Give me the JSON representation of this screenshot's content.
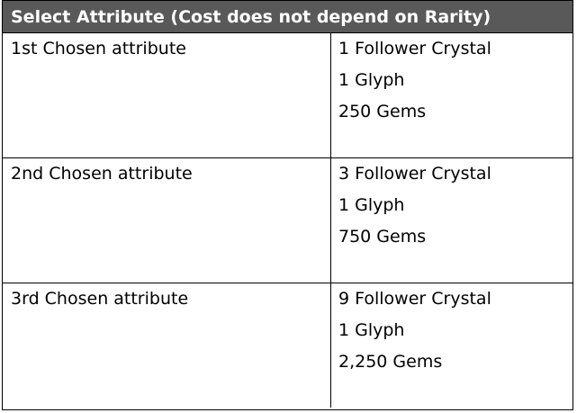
{
  "table": {
    "title": "Select Attribute (Cost does not depend on Rarity)",
    "rows": [
      {
        "label": "1st Chosen attribute",
        "costs": [
          "1 Follower Crystal",
          "1 Glyph",
          "250 Gems"
        ]
      },
      {
        "label": "2nd Chosen attribute",
        "costs": [
          "3 Follower Crystal",
          "1 Glyph",
          "750 Gems"
        ]
      },
      {
        "label": "3rd Chosen attribute",
        "costs": [
          "9 Follower Crystal",
          "1 Glyph",
          "2,250 Gems"
        ]
      }
    ]
  }
}
